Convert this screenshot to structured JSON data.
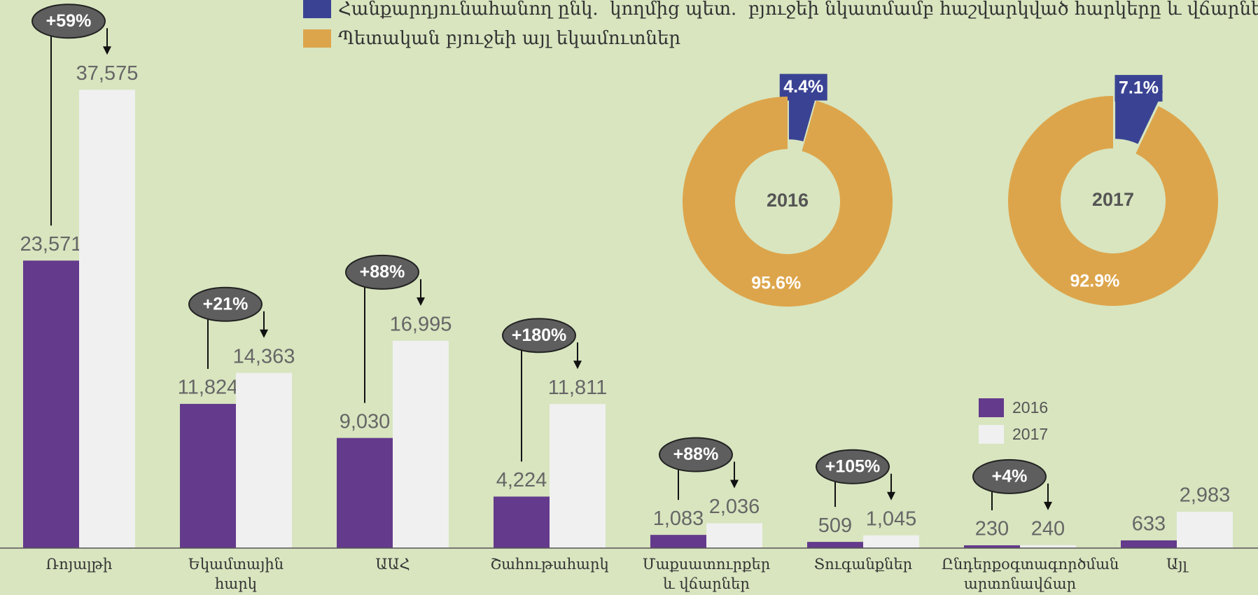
{
  "chart_data": [
    {
      "type": "bar",
      "categories": [
        "Ռոյալթի",
        "Եկամտային\nհարկ",
        "ԱԱՀ",
        "Շահութահարկ",
        "Մաքսատուրքեր\nև վճարներ",
        "Տուգանքներ",
        "Ընդերքօգտագործման\nարտոնավճար",
        "Այլ"
      ],
      "series": [
        {
          "name": "2016",
          "color": "#643a8c",
          "values": [
            23571,
            11824,
            9030,
            4224,
            1083,
            509,
            230,
            633
          ],
          "value_labels": [
            "23,571",
            "11,824",
            "9,030",
            "4,224",
            "1,083",
            "509",
            "230",
            "633"
          ]
        },
        {
          "name": "2017",
          "color": "#f0f0f0",
          "values": [
            37575,
            14363,
            16995,
            11811,
            2036,
            1045,
            240,
            2983
          ],
          "value_labels": [
            "37,575",
            "14,363",
            "16,995",
            "11,811",
            "2,036",
            "1,045",
            "240",
            "2,983"
          ]
        }
      ],
      "change_labels": [
        "+59%",
        "+21%",
        "+88%",
        "+180%",
        "+88%",
        "+105%",
        "+4%",
        null
      ],
      "ylim": [
        0,
        40000
      ]
    },
    {
      "type": "donut",
      "categories": [
        "Հանքարդյունահանող ընկ.  կողմից պետ.  բյուջեի նկատմամբ հաշվարկված հարկերը և վճարները",
        "Պետական բյուջեի այլ եկամուտներ"
      ],
      "colors": [
        "#3a4393",
        "#dda54b"
      ],
      "pies": [
        {
          "label": "2016",
          "values": [
            4.4,
            95.6
          ],
          "value_labels": [
            "4.4%",
            "95.6%"
          ]
        },
        {
          "label": "2017",
          "values": [
            7.1,
            92.9
          ],
          "value_labels": [
            "7.1%",
            "92.9%"
          ]
        }
      ]
    }
  ]
}
